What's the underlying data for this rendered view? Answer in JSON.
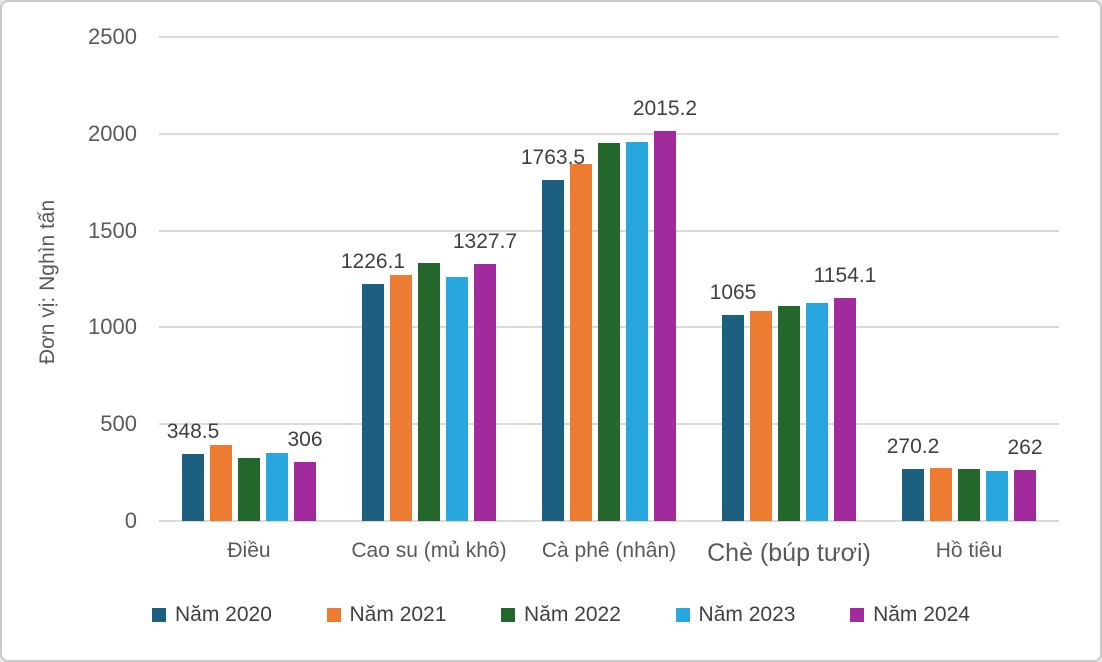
{
  "frame": {
    "background": "#ffffff",
    "border_color": "#c9c9c9"
  },
  "palette": {
    "grid": "#dadada",
    "axis_text": "#595959",
    "data_label_text": "#404040"
  },
  "chart_data": {
    "type": "bar",
    "title": "",
    "ylabel": "Đơn vị: Nghìn tấn",
    "xlabel": "",
    "ylim": [
      0,
      2500
    ],
    "yticks": [
      0,
      500,
      1000,
      1500,
      2000,
      2500
    ],
    "grid": true,
    "legend_position": "bottom",
    "categories": [
      "Điều",
      "Cao su (mủ khô)",
      "Cà phê (nhân)",
      "Chè (búp tươi)",
      "Hồ tiêu"
    ],
    "emphasized_category_index": 3,
    "series": [
      {
        "name": "Năm 2020",
        "color": "#1d5f7e",
        "values": [
          348.5,
          1226.1,
          1763.5,
          1065,
          270.2
        ]
      },
      {
        "name": "Năm 2021",
        "color": "#eb7c31",
        "values": [
          395,
          1270,
          1845,
          1086,
          272
        ]
      },
      {
        "name": "Năm 2022",
        "color": "#23682a",
        "values": [
          327,
          1335,
          1954,
          1113,
          268
        ]
      },
      {
        "name": "Năm 2023",
        "color": "#28a7de",
        "values": [
          353,
          1262,
          1956,
          1125,
          256
        ]
      },
      {
        "name": "Năm 2024",
        "color": "#a12a9c",
        "values": [
          306,
          1327.7,
          2015.2,
          1154.1,
          262
        ]
      }
    ],
    "data_labels": {
      "labeled_series_indices": [
        0,
        4
      ],
      "values": [
        "348.5",
        "306",
        "1226.1",
        "1327.7",
        "1763.5",
        "2015.2",
        "1065",
        "1154.1",
        "270.2",
        "262"
      ]
    }
  }
}
